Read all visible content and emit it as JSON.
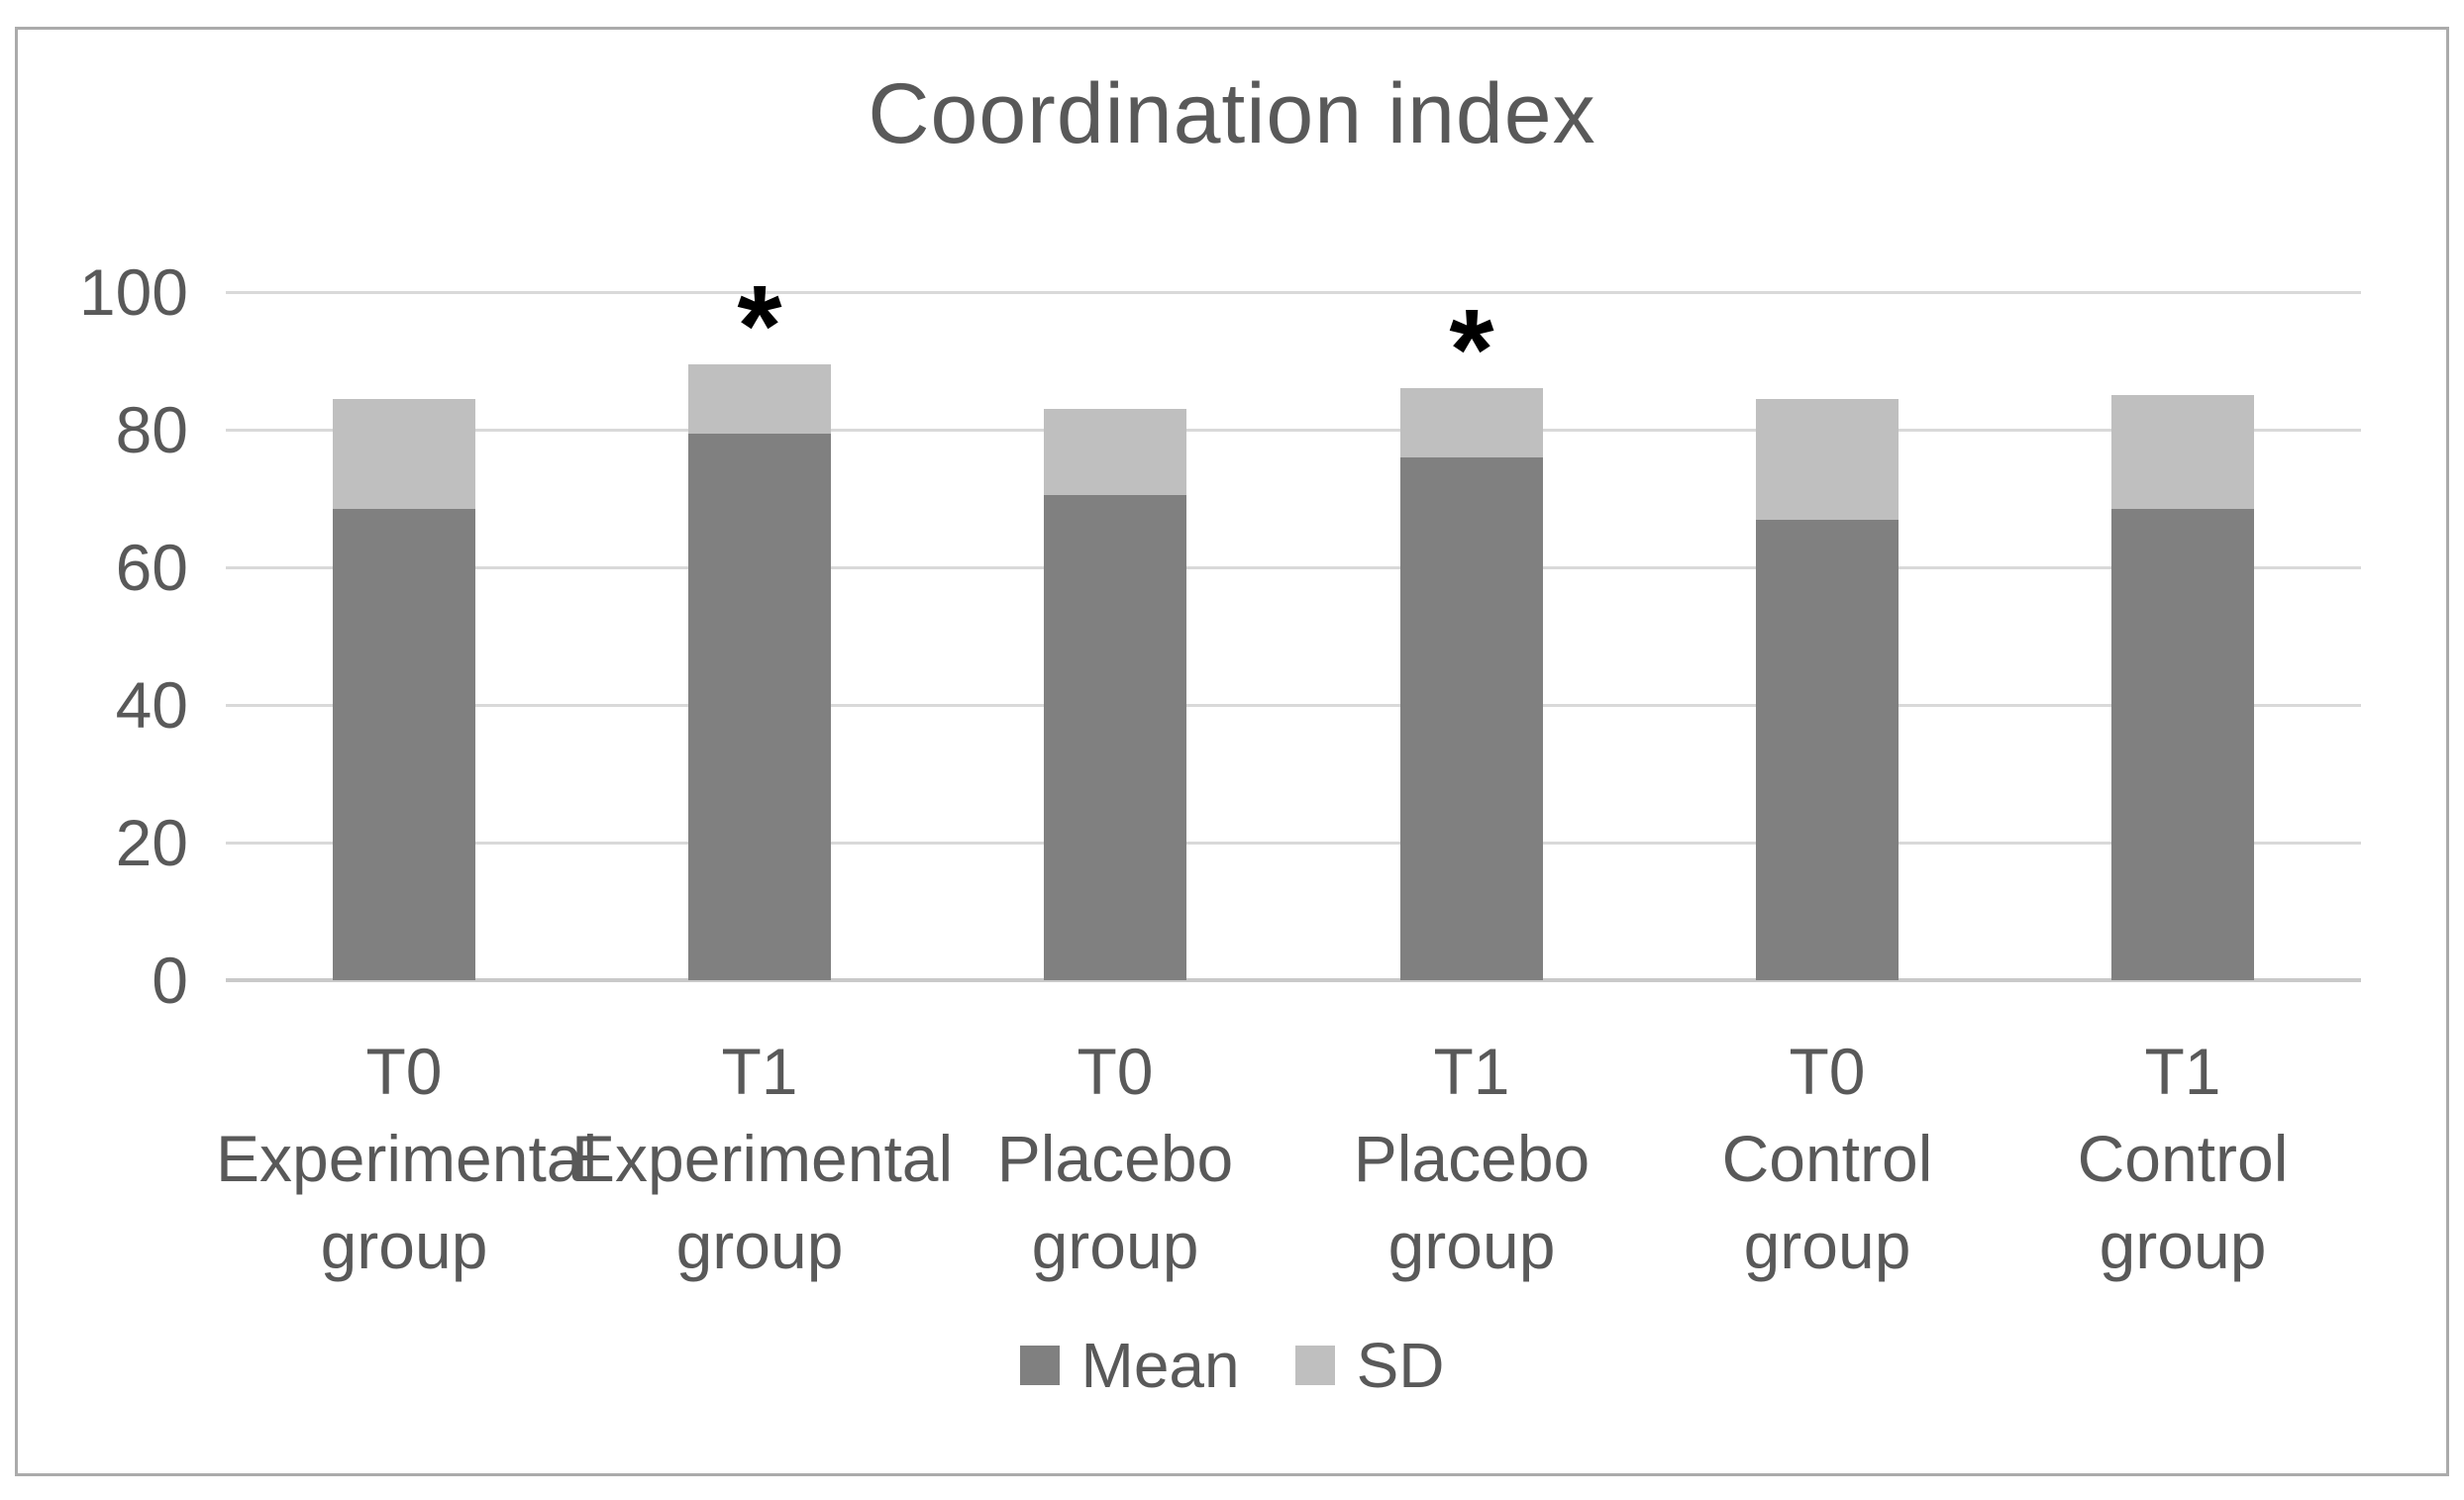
{
  "figure": {
    "title": "Coordination index"
  },
  "chart_data": {
    "type": "bar",
    "stacked": true,
    "title": "Coordination index",
    "categories": [
      "T0 Experimental group",
      "T1 Experimental group",
      "T0 Placebo group",
      "T1 Placebo group",
      "T0 Control group",
      "T1 Control group"
    ],
    "category_label_lines": [
      [
        "T0",
        "Experimental",
        "group"
      ],
      [
        "T1",
        "Experimental",
        "group"
      ],
      [
        "T0",
        "Placebo",
        "group"
      ],
      [
        "T1",
        "Placebo",
        "group"
      ],
      [
        "T0",
        "Control",
        "group"
      ],
      [
        "T1",
        "Control",
        "group"
      ]
    ],
    "series": [
      {
        "name": "Mean",
        "color": "#808080",
        "values": [
          68.5,
          79.5,
          70.5,
          76,
          67,
          68.5
        ]
      },
      {
        "name": "SD",
        "color": "#bfbfbf",
        "values": [
          16,
          10,
          12.5,
          10,
          17.5,
          16.5
        ]
      }
    ],
    "stack_totals": [
      84.5,
      89.5,
      83,
      86,
      84.5,
      85
    ],
    "annotations": [
      {
        "category_index": 1,
        "symbol": "*"
      },
      {
        "category_index": 3,
        "symbol": "*"
      }
    ],
    "yticks": [
      0,
      20,
      40,
      60,
      80,
      100
    ],
    "ylim": [
      0,
      100
    ],
    "grid": true,
    "legend_position": "bottom",
    "legend_entries": [
      "Mean",
      "SD"
    ]
  },
  "colors": {
    "mean_bar": "#808080",
    "sd_bar": "#bfbfbf",
    "text": "#595959",
    "gridline": "#d9d9d9",
    "axis_line": "#c9c9c9",
    "frame_border": "#ababab",
    "asterisk": "#000000",
    "background": "#ffffff"
  }
}
